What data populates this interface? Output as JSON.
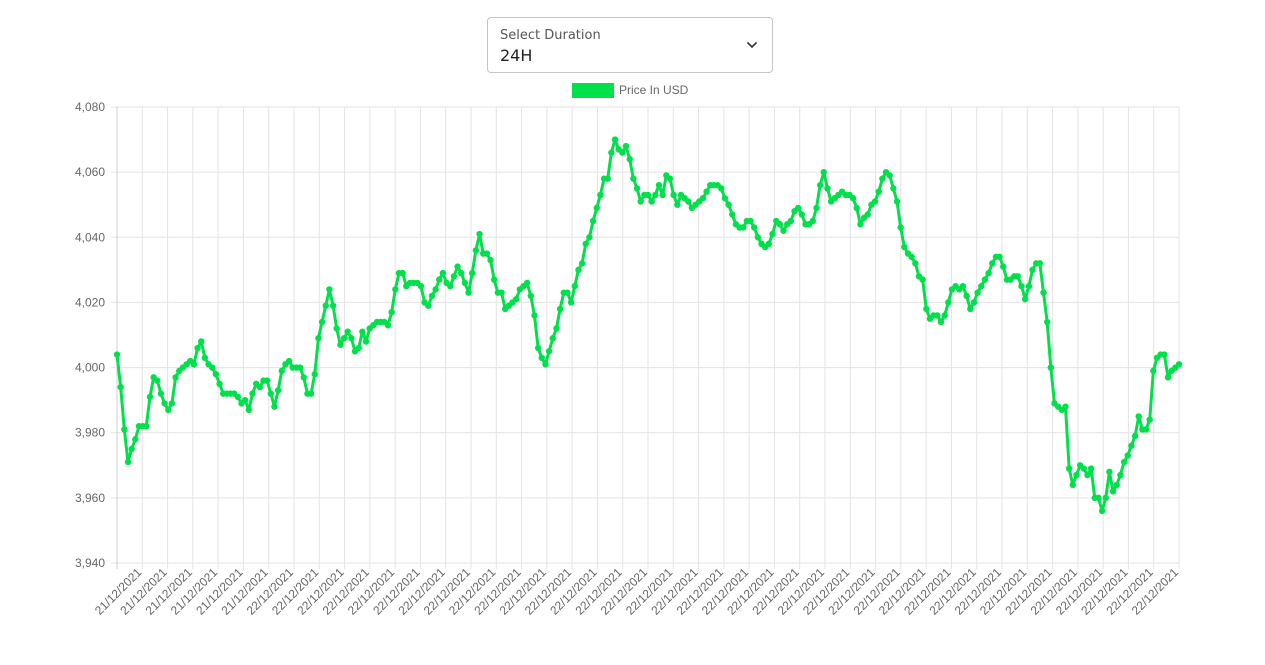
{
  "duration_select": {
    "label": "Select Duration",
    "value": "24H"
  },
  "colors": {
    "series": "#00e04b",
    "grid": "#e3e3e3",
    "text": "#666666"
  },
  "chart_data": {
    "type": "line",
    "title": "",
    "xlabel": "",
    "ylabel": "",
    "ylim": [
      3940,
      4080
    ],
    "y_ticks": [
      4080,
      4060,
      4040,
      4020,
      4000,
      3980,
      3960,
      3940
    ],
    "y_tick_labels": [
      "4,080",
      "4,060",
      "4,040",
      "4,020",
      "4,000",
      "3,980",
      "3,960",
      "3,940"
    ],
    "grid": true,
    "legend_position": "top-center",
    "x_tick_labels": [
      "21/12/2021",
      "21/12/2021",
      "21/12/2021",
      "21/12/2021",
      "21/12/2021",
      "21/12/2021",
      "22/12/2021",
      "22/12/2021",
      "22/12/2021",
      "22/12/2021",
      "22/12/2021",
      "22/12/2021",
      "22/12/2021",
      "22/12/2021",
      "22/12/2021",
      "22/12/2021",
      "22/12/2021",
      "22/12/2021",
      "22/12/2021",
      "22/12/2021",
      "22/12/2021",
      "22/12/2021",
      "22/12/2021",
      "22/12/2021",
      "22/12/2021",
      "22/12/2021",
      "22/12/2021",
      "22/12/2021",
      "22/12/2021",
      "22/12/2021",
      "22/12/2021",
      "22/12/2021",
      "22/12/2021",
      "22/12/2021",
      "22/12/2021",
      "22/12/2021",
      "22/12/2021",
      "22/12/2021",
      "22/12/2021",
      "22/12/2021",
      "22/12/2021",
      "22/12/2021"
    ],
    "series": [
      {
        "name": "Price In USD",
        "values": [
          4004,
          3994,
          3981,
          3971,
          3975,
          3978,
          3982,
          3982,
          3982,
          3991,
          3997,
          3996,
          3992,
          3989,
          3987,
          3989,
          3997,
          3999,
          4000,
          4001,
          4002,
          4001,
          4006,
          4008,
          4003,
          4001,
          4000,
          3998,
          3995,
          3992,
          3992,
          3992,
          3992,
          3991,
          3989,
          3990,
          3987,
          3992,
          3995,
          3994,
          3996,
          3996,
          3992,
          3988,
          3993,
          3999,
          4001,
          4002,
          4000,
          4000,
          4000,
          3997,
          3992,
          3992,
          3998,
          4009,
          4014,
          4019,
          4024,
          4019,
          4012,
          4007,
          4009,
          4011,
          4009,
          4005,
          4006,
          4011,
          4008,
          4012,
          4013,
          4014,
          4014,
          4014,
          4013,
          4017,
          4024,
          4029,
          4029,
          4025,
          4026,
          4026,
          4026,
          4025,
          4020,
          4019,
          4022,
          4024,
          4027,
          4029,
          4026,
          4025,
          4028,
          4031,
          4029,
          4026,
          4023,
          4029,
          4036,
          4041,
          4035,
          4035,
          4033,
          4027,
          4023,
          4023,
          4018,
          4019,
          4020,
          4021,
          4024,
          4025,
          4026,
          4022,
          4016,
          4006,
          4003,
          4001,
          4005,
          4009,
          4012,
          4018,
          4023,
          4023,
          4020,
          4025,
          4030,
          4032,
          4038,
          4040,
          4045,
          4049,
          4053,
          4058,
          4058,
          4066,
          4070,
          4067,
          4066,
          4068,
          4064,
          4058,
          4055,
          4051,
          4053,
          4053,
          4051,
          4053,
          4056,
          4053,
          4059,
          4058,
          4053,
          4050,
          4053,
          4052,
          4051,
          4049,
          4050,
          4051,
          4052,
          4054,
          4056,
          4056,
          4056,
          4055,
          4052,
          4050,
          4047,
          4044,
          4043,
          4043,
          4045,
          4045,
          4043,
          4040,
          4038,
          4037,
          4038,
          4041,
          4045,
          4044,
          4042,
          4044,
          4045,
          4048,
          4049,
          4047,
          4044,
          4044,
          4045,
          4049,
          4056,
          4060,
          4055,
          4051,
          4052,
          4053,
          4054,
          4053,
          4053,
          4052,
          4049,
          4044,
          4046,
          4047,
          4050,
          4051,
          4054,
          4058,
          4060,
          4059,
          4055,
          4051,
          4043,
          4037,
          4035,
          4034,
          4032,
          4028,
          4027,
          4018,
          4015,
          4016,
          4016,
          4014,
          4016,
          4020,
          4024,
          4025,
          4024,
          4025,
          4022,
          4018,
          4020,
          4023,
          4025,
          4027,
          4029,
          4032,
          4034,
          4034,
          4031,
          4027,
          4027,
          4028,
          4028,
          4025,
          4021,
          4025,
          4030,
          4032,
          4032,
          4023,
          4014,
          4000,
          3989,
          3988,
          3987,
          3988,
          3969,
          3964,
          3967,
          3970,
          3969,
          3967,
          3969,
          3960,
          3960,
          3956,
          3960,
          3968,
          3962,
          3964,
          3967,
          3971,
          3973,
          3976,
          3979,
          3985,
          3981,
          3981,
          3984,
          3999,
          4003,
          4004,
          4004,
          3997,
          3999,
          4000,
          4001
        ]
      }
    ]
  }
}
